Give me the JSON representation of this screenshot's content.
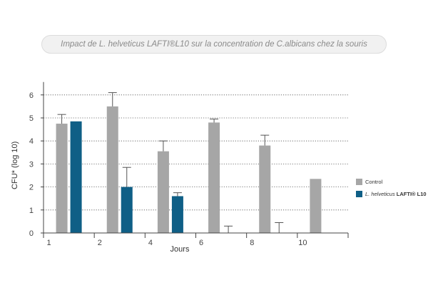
{
  "chart_data": {
    "type": "bar",
    "title": "Impact de L. helveticus LAFTI®L10 sur la concentration de C.albicans chez la souris",
    "xlabel": "Jours",
    "ylabel": "CFU* (log 10)",
    "categories": [
      "1",
      "2",
      "4",
      "6",
      "8",
      "10"
    ],
    "yticks": [
      "0",
      "1",
      "2",
      "3",
      "4",
      "5",
      "6"
    ],
    "ylim": [
      0,
      6.5
    ],
    "grid": "horizontal-dotted",
    "legend_position": "right",
    "series": [
      {
        "name": "Control",
        "color": "#a6a6a6",
        "values": [
          4.75,
          5.5,
          3.55,
          4.8,
          3.8,
          2.35
        ],
        "errors": [
          0.4,
          0.6,
          0.45,
          0.15,
          0.45,
          null
        ]
      },
      {
        "name": "L. helveticus LAFTI® L10",
        "color": "#0f5f86",
        "values": [
          4.85,
          2.0,
          1.6,
          0.0,
          0.0,
          null
        ],
        "errors": [
          null,
          0.85,
          0.15,
          0.3,
          0.45,
          null
        ]
      }
    ]
  },
  "legend": {
    "control_label": "Control",
    "lafti_species": "L. helveticus",
    "lafti_strain": "LAFTI® L10"
  }
}
